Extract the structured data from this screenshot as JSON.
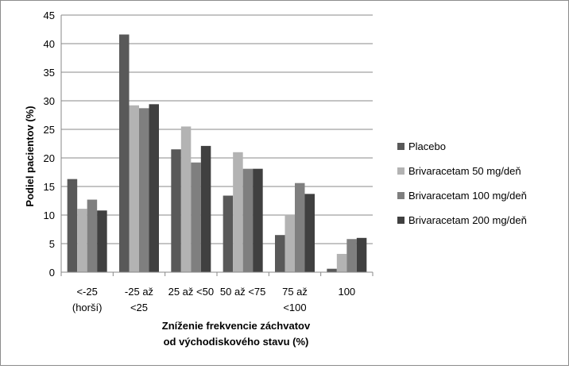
{
  "chart_data": {
    "type": "bar",
    "title": "",
    "ylabel": "Podiel pacientov (%)",
    "xlabel": [
      "Zníženie frekvencie záchvatov",
      "od východiskového  stavu (%)"
    ],
    "ylim": [
      0,
      45
    ],
    "yticks": [
      0,
      5,
      10,
      15,
      20,
      25,
      30,
      35,
      40,
      45
    ],
    "grid": "horizontal",
    "legend_position": "right",
    "categories": [
      [
        "<-25",
        "(horší)"
      ],
      [
        "-25 až",
        "<25"
      ],
      [
        "25 až <50"
      ],
      [
        "50 až <75"
      ],
      [
        "75 až",
        "<100"
      ],
      [
        "100"
      ]
    ],
    "series": [
      {
        "name": "Placebo",
        "color": "#595959",
        "values": [
          16.3,
          41.6,
          21.5,
          13.4,
          6.5,
          0.6
        ]
      },
      {
        "name": "Brivaracetam 50 mg/deň",
        "color": "#b3b3b3",
        "values": [
          11.1,
          29.2,
          25.5,
          21.0,
          10.1,
          3.2
        ]
      },
      {
        "name": "Brivaracetam 100 mg/deň",
        "color": "#7f7f7f",
        "values": [
          12.7,
          28.7,
          19.2,
          18.1,
          15.6,
          5.8
        ]
      },
      {
        "name": "Brivaracetam 200 mg/deň",
        "color": "#404040",
        "values": [
          10.8,
          29.4,
          22.1,
          18.1,
          13.7,
          6.0
        ]
      }
    ]
  }
}
